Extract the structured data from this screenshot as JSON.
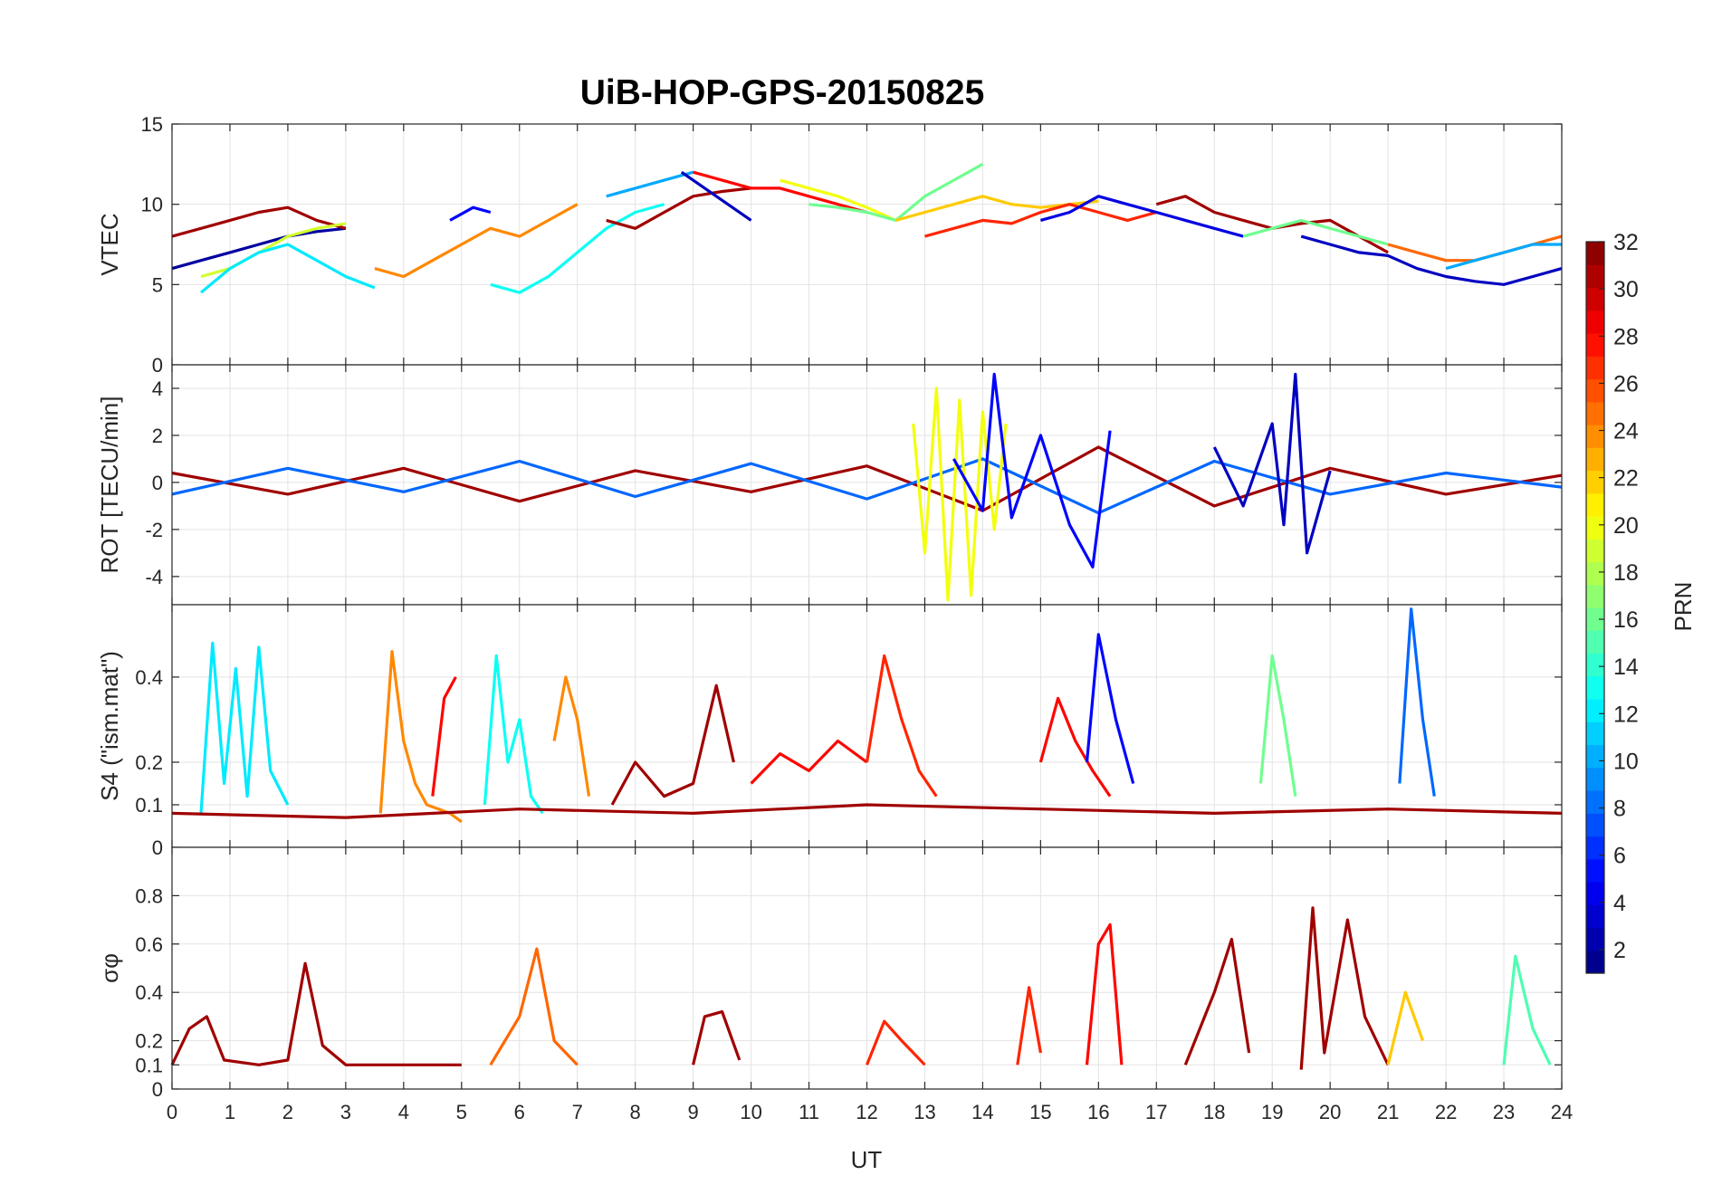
{
  "chart_data": {
    "type": "line",
    "title": "UiB-HOP-GPS-20150825",
    "xlabel": "UT",
    "xlim": [
      0,
      24
    ],
    "xticks": [
      0,
      1,
      2,
      3,
      4,
      5,
      6,
      7,
      8,
      9,
      10,
      11,
      12,
      13,
      14,
      15,
      16,
      17,
      18,
      19,
      20,
      21,
      22,
      23,
      24
    ],
    "grid": true,
    "colorbar": {
      "label": "PRN",
      "range": [
        1,
        32
      ],
      "ticks": [
        2,
        4,
        6,
        8,
        10,
        12,
        14,
        16,
        18,
        20,
        22,
        24,
        26,
        28,
        30,
        32
      ],
      "colormap": "jet"
    },
    "panels": [
      {
        "id": "vtec",
        "ylabel": "VTEC",
        "ylim": [
          0,
          15
        ],
        "yticks": [
          0,
          5,
          10,
          15
        ],
        "series": [
          {
            "prn": 2,
            "x": [
              0,
              0.5,
              1,
              1.5,
              2,
              2.5,
              3
            ],
            "y": [
              6.0,
              6.5,
              7.0,
              7.5,
              8.0,
              8.3,
              8.5
            ]
          },
          {
            "prn": 31,
            "x": [
              0,
              0.5,
              1,
              1.5,
              2,
              2.5,
              3
            ],
            "y": [
              8.0,
              8.5,
              9.0,
              9.5,
              9.8,
              9.0,
              8.5
            ]
          },
          {
            "prn": 19,
            "x": [
              0.5,
              1,
              1.5,
              2,
              2.5,
              3
            ],
            "y": [
              5.5,
              6.0,
              7.0,
              8.0,
              8.5,
              8.8
            ]
          },
          {
            "prn": 12,
            "x": [
              0.5,
              1,
              1.5,
              2,
              2.5,
              3,
              3.5
            ],
            "y": [
              4.5,
              6.0,
              7.0,
              7.5,
              6.5,
              5.5,
              4.8
            ]
          },
          {
            "prn": 5,
            "x": [
              4.8,
              5.2,
              5.5
            ],
            "y": [
              9.0,
              9.8,
              9.5
            ]
          },
          {
            "prn": 24,
            "x": [
              3.5,
              4,
              4.5,
              5,
              5.5,
              6,
              6.5,
              7
            ],
            "y": [
              6.0,
              5.5,
              6.5,
              7.5,
              8.5,
              8.0,
              9.0,
              10.0
            ]
          },
          {
            "prn": 13,
            "x": [
              5.5,
              6,
              6.5,
              7,
              7.5,
              8,
              8.5
            ],
            "y": [
              5.0,
              4.5,
              5.5,
              7.0,
              8.5,
              9.5,
              10.0
            ]
          },
          {
            "prn": 10,
            "x": [
              7.5,
              8,
              8.5,
              9
            ],
            "y": [
              10.5,
              11.0,
              11.5,
              12.0
            ]
          },
          {
            "prn": 31,
            "x": [
              7.5,
              8,
              8.5,
              9,
              9.5,
              10
            ],
            "y": [
              9.0,
              8.5,
              9.5,
              10.5,
              10.8,
              11.0
            ]
          },
          {
            "prn": 3,
            "x": [
              8.8,
              9.2,
              9.6,
              10
            ],
            "y": [
              12.0,
              11.0,
              10.0,
              9.0
            ]
          },
          {
            "prn": 28,
            "x": [
              9,
              9.5,
              10,
              10.5,
              11,
              11.5,
              12
            ],
            "y": [
              12.0,
              11.5,
              11.0,
              11.0,
              10.5,
              10.0,
              9.5
            ]
          },
          {
            "prn": 20,
            "x": [
              10.5,
              11,
              11.5,
              12,
              12.5
            ],
            "y": [
              11.5,
              11.0,
              10.5,
              9.8,
              9.0
            ]
          },
          {
            "prn": 16,
            "x": [
              11,
              11.5,
              12,
              12.5,
              13,
              13.5,
              14
            ],
            "y": [
              10.0,
              9.8,
              9.5,
              9.0,
              10.5,
              11.5,
              12.5
            ]
          },
          {
            "prn": 22,
            "x": [
              12.5,
              13,
              13.5,
              14,
              14.5,
              15,
              15.5,
              16
            ],
            "y": [
              9.0,
              9.5,
              10.0,
              10.5,
              10.0,
              9.8,
              10.0,
              10.2
            ]
          },
          {
            "prn": 27,
            "x": [
              13,
              13.5,
              14,
              14.5,
              15,
              15.5,
              16,
              16.5,
              17
            ],
            "y": [
              8.0,
              8.5,
              9.0,
              8.8,
              9.5,
              10.0,
              9.5,
              9.0,
              9.5
            ]
          },
          {
            "prn": 4,
            "x": [
              15,
              15.5,
              16,
              16.5,
              17,
              17.5,
              18,
              18.5
            ],
            "y": [
              9.0,
              9.5,
              10.5,
              10.0,
              9.5,
              9.0,
              8.5,
              8.0
            ]
          },
          {
            "prn": 31,
            "x": [
              17,
              17.5,
              18,
              18.5,
              19,
              19.5,
              20,
              20.5,
              21
            ],
            "y": [
              10.0,
              10.5,
              9.5,
              9.0,
              8.5,
              8.8,
              9.0,
              8.0,
              7.0
            ]
          },
          {
            "prn": 16,
            "x": [
              18.5,
              19,
              19.5,
              20,
              20.5,
              21
            ],
            "y": [
              8.0,
              8.5,
              9.0,
              8.5,
              8.0,
              7.5
            ]
          },
          {
            "prn": 3,
            "x": [
              19.5,
              20,
              20.5,
              21,
              21.5,
              22,
              22.5,
              23,
              23.5,
              24
            ],
            "y": [
              8.0,
              7.5,
              7.0,
              6.8,
              6.0,
              5.5,
              5.2,
              5.0,
              5.5,
              6.0
            ]
          },
          {
            "prn": 25,
            "x": [
              21,
              21.5,
              22,
              22.5,
              23,
              23.5,
              24
            ],
            "y": [
              7.5,
              7.0,
              6.5,
              6.5,
              7.0,
              7.5,
              8.0
            ]
          },
          {
            "prn": 10,
            "x": [
              22,
              22.5,
              23,
              23.5,
              24
            ],
            "y": [
              6.0,
              6.5,
              7.0,
              7.5,
              7.5
            ]
          }
        ]
      },
      {
        "id": "rot",
        "ylabel": "ROT [TECU/min]",
        "ylim": [
          -5.2,
          5.0
        ],
        "yticks": [
          -4,
          -2,
          0,
          2,
          4
        ],
        "series": [
          {
            "prn": 31,
            "x": [
              0,
              2,
              4,
              6,
              8,
              10,
              12,
              14,
              16,
              18,
              20,
              22,
              24
            ],
            "y": [
              0.4,
              -0.5,
              0.6,
              -0.8,
              0.5,
              -0.4,
              0.7,
              -1.2,
              1.5,
              -1.0,
              0.6,
              -0.5,
              0.3
            ]
          },
          {
            "prn": 8,
            "x": [
              0,
              2,
              4,
              6,
              8,
              10,
              12,
              14,
              16,
              18,
              20,
              22,
              24
            ],
            "y": [
              -0.5,
              0.6,
              -0.4,
              0.9,
              -0.6,
              0.8,
              -0.7,
              1.0,
              -1.3,
              0.9,
              -0.5,
              0.4,
              -0.2
            ]
          },
          {
            "prn": 20,
            "x": [
              12.8,
              13.0,
              13.2,
              13.4,
              13.6,
              13.8,
              14.0,
              14.2,
              14.4
            ],
            "y": [
              2.5,
              -3.0,
              4.0,
              -5.0,
              3.5,
              -4.8,
              3.0,
              -2.0,
              2.5
            ]
          },
          {
            "prn": 5,
            "x": [
              13.5,
              14.0,
              14.2,
              14.5,
              15.0,
              15.5,
              15.9,
              16.2
            ],
            "y": [
              1.0,
              -1.2,
              4.6,
              -1.5,
              2.0,
              -1.8,
              -3.6,
              2.2
            ]
          },
          {
            "prn": 3,
            "x": [
              18,
              18.5,
              19,
              19.2,
              19.4,
              19.6,
              20
            ],
            "y": [
              1.5,
              -1.0,
              2.5,
              -1.8,
              4.6,
              -3.0,
              0.5
            ]
          }
        ]
      },
      {
        "id": "s4",
        "ylabel": "S4 (\"ism.mat\")",
        "ylim": [
          0,
          0.57
        ],
        "yticks": [
          0,
          0.1,
          0.2,
          0.4
        ],
        "series": [
          {
            "prn": 12,
            "x": [
              0.5,
              0.7,
              0.9,
              1.1,
              1.3,
              1.5,
              1.7,
              2.0
            ],
            "y": [
              0.08,
              0.48,
              0.15,
              0.42,
              0.12,
              0.47,
              0.18,
              0.1
            ]
          },
          {
            "prn": 24,
            "x": [
              3.6,
              3.8,
              4.0,
              4.2,
              4.4,
              4.8,
              5.0
            ],
            "y": [
              0.08,
              0.46,
              0.25,
              0.15,
              0.1,
              0.08,
              0.06
            ]
          },
          {
            "prn": 28,
            "x": [
              4.5,
              4.7,
              4.9
            ],
            "y": [
              0.12,
              0.35,
              0.4
            ]
          },
          {
            "prn": 13,
            "x": [
              5.4,
              5.6,
              5.8,
              6.0,
              6.2,
              6.4
            ],
            "y": [
              0.1,
              0.45,
              0.2,
              0.3,
              0.12,
              0.08
            ]
          },
          {
            "prn": 24,
            "x": [
              6.6,
              6.8,
              7.0,
              7.2
            ],
            "y": [
              0.25,
              0.4,
              0.3,
              0.12
            ]
          },
          {
            "prn": 31,
            "x": [
              7.6,
              8.0,
              8.5,
              9.0,
              9.4,
              9.7
            ],
            "y": [
              0.1,
              0.2,
              0.12,
              0.15,
              0.38,
              0.2
            ]
          },
          {
            "prn": 28,
            "x": [
              10,
              10.5,
              11,
              11.5,
              12
            ],
            "y": [
              0.15,
              0.22,
              0.18,
              0.25,
              0.2
            ]
          },
          {
            "prn": 27,
            "x": [
              12.0,
              12.3,
              12.6,
              12.9,
              13.2
            ],
            "y": [
              0.2,
              0.45,
              0.3,
              0.18,
              0.12
            ]
          },
          {
            "prn": 28,
            "x": [
              15.0,
              15.3,
              15.6,
              15.9,
              16.2
            ],
            "y": [
              0.2,
              0.35,
              0.25,
              0.18,
              0.12
            ]
          },
          {
            "prn": 5,
            "x": [
              15.8,
              16.0,
              16.3,
              16.6
            ],
            "y": [
              0.2,
              0.5,
              0.3,
              0.15
            ]
          },
          {
            "prn": 16,
            "x": [
              18.8,
              19.0,
              19.2,
              19.4
            ],
            "y": [
              0.15,
              0.45,
              0.3,
              0.12
            ]
          },
          {
            "prn": 8,
            "x": [
              21.2,
              21.4,
              21.6,
              21.8
            ],
            "y": [
              0.15,
              0.56,
              0.3,
              0.12
            ]
          },
          {
            "prn": 31,
            "x": [
              0,
              3,
              6,
              9,
              12,
              15,
              18,
              21,
              24
            ],
            "y": [
              0.08,
              0.07,
              0.09,
              0.08,
              0.1,
              0.09,
              0.08,
              0.09,
              0.08
            ]
          }
        ]
      },
      {
        "id": "sigma",
        "ylabel": "σφ",
        "ylim": [
          0,
          1
        ],
        "yticks": [
          0,
          0.1,
          0.2,
          0.4,
          0.6,
          0.8
        ],
        "series": [
          {
            "prn": 31,
            "x": [
              0,
              0.3,
              0.6,
              0.9,
              1.5,
              2.0,
              2.3,
              2.6,
              3.0,
              4.0,
              5.0
            ],
            "y": [
              0.1,
              0.25,
              0.3,
              0.12,
              0.1,
              0.12,
              0.52,
              0.18,
              0.1,
              0.1,
              0.1
            ]
          },
          {
            "prn": 25,
            "x": [
              5.5,
              6.0,
              6.3,
              6.6,
              7.0
            ],
            "y": [
              0.1,
              0.3,
              0.58,
              0.2,
              0.1
            ]
          },
          {
            "prn": 31,
            "x": [
              9.0,
              9.2,
              9.5,
              9.8
            ],
            "y": [
              0.1,
              0.3,
              0.32,
              0.12
            ]
          },
          {
            "prn": 27,
            "x": [
              12.0,
              12.3,
              12.6,
              13.0
            ],
            "y": [
              0.1,
              0.28,
              0.2,
              0.1
            ]
          },
          {
            "prn": 27,
            "x": [
              14.6,
              14.8,
              15.0
            ],
            "y": [
              0.1,
              0.42,
              0.15
            ]
          },
          {
            "prn": 28,
            "x": [
              15.8,
              16.0,
              16.2,
              16.4
            ],
            "y": [
              0.1,
              0.6,
              0.68,
              0.1
            ]
          },
          {
            "prn": 31,
            "x": [
              17.5,
              18.0,
              18.3,
              18.6
            ],
            "y": [
              0.1,
              0.4,
              0.62,
              0.15
            ]
          },
          {
            "prn": 31,
            "x": [
              19.5,
              19.7,
              19.9,
              20.3,
              20.6,
              21.0
            ],
            "y": [
              0.08,
              0.75,
              0.15,
              0.7,
              0.3,
              0.1
            ]
          },
          {
            "prn": 22,
            "x": [
              21.0,
              21.3,
              21.6
            ],
            "y": [
              0.1,
              0.4,
              0.2
            ]
          },
          {
            "prn": 15,
            "x": [
              23.0,
              23.2,
              23.5,
              23.8
            ],
            "y": [
              0.1,
              0.55,
              0.25,
              0.1
            ]
          }
        ]
      }
    ]
  }
}
